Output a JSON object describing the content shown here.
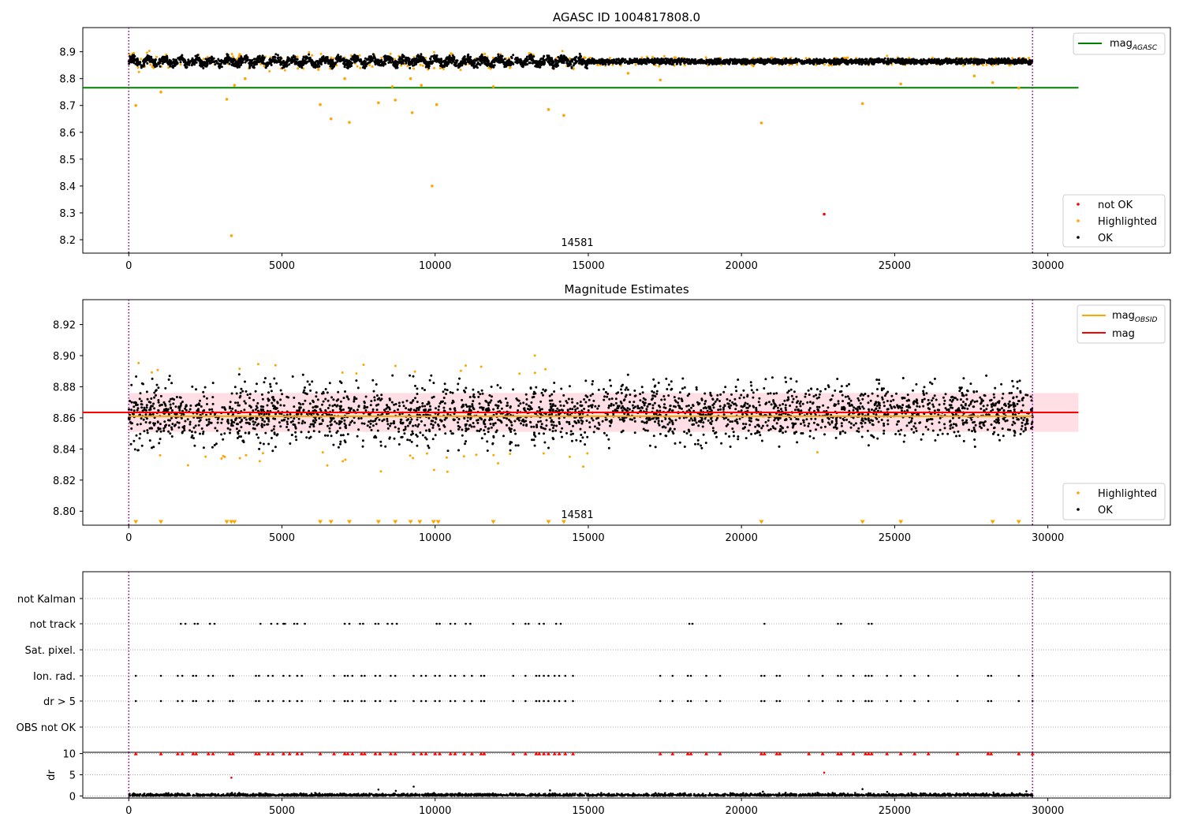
{
  "colors": {
    "ok": "#000000",
    "highlighted": "#ffa500",
    "not_ok": "#ff0000",
    "mag_agasc": "#008000",
    "mag_obsid": "#ffa500",
    "mag": "#ff0000",
    "mag_band": "#ffc0cb",
    "obs_boundary": "#800080",
    "grid": "#b0b0b0"
  },
  "obs_label": "14581",
  "chart_data": [
    {
      "id": "top",
      "type": "scatter",
      "title": "AGASC ID 1004817808.0",
      "xlim": [
        -1500,
        34000
      ],
      "ylim": [
        8.15,
        8.99
      ],
      "xticks": [
        "0",
        "5000",
        "10000",
        "15000",
        "20000",
        "25000",
        "30000"
      ],
      "yticks": [
        "8.2",
        "8.3",
        "8.4",
        "8.5",
        "8.6",
        "8.7",
        "8.8",
        "8.9"
      ],
      "obs_boundaries": [
        0,
        29500
      ],
      "legend_lines": [
        {
          "name_main": "mag",
          "name_sub": "AGASC",
          "color": "#008000",
          "value": 8.766
        }
      ],
      "legend_markers": [
        {
          "name": "not OK",
          "color": "#ff0000"
        },
        {
          "name": "Highlighted",
          "color": "#ffa500"
        },
        {
          "name": "OK",
          "color": "#000000"
        }
      ],
      "band": {
        "x_range": [
          0,
          29500
        ],
        "center": 8.864,
        "spread_early": 0.02,
        "spread_late": 0.012,
        "until_x": 15000
      },
      "outliers": [
        {
          "x": 230,
          "y": 8.7,
          "s": "Highlighted"
        },
        {
          "x": 1050,
          "y": 8.75,
          "s": "Highlighted"
        },
        {
          "x": 3200,
          "y": 8.723,
          "s": "Highlighted"
        },
        {
          "x": 3350,
          "y": 8.215,
          "s": "Highlighted"
        },
        {
          "x": 3450,
          "y": 8.775,
          "s": "Highlighted"
        },
        {
          "x": 3800,
          "y": 8.8,
          "s": "Highlighted"
        },
        {
          "x": 6250,
          "y": 8.703,
          "s": "Highlighted"
        },
        {
          "x": 6600,
          "y": 8.65,
          "s": "Highlighted"
        },
        {
          "x": 7050,
          "y": 8.8,
          "s": "Highlighted"
        },
        {
          "x": 7200,
          "y": 8.637,
          "s": "Highlighted"
        },
        {
          "x": 8150,
          "y": 8.71,
          "s": "Highlighted"
        },
        {
          "x": 8600,
          "y": 8.77,
          "s": "Highlighted"
        },
        {
          "x": 8700,
          "y": 8.72,
          "s": "Highlighted"
        },
        {
          "x": 9200,
          "y": 8.8,
          "s": "Highlighted"
        },
        {
          "x": 9250,
          "y": 8.673,
          "s": "Highlighted"
        },
        {
          "x": 9900,
          "y": 8.4,
          "s": "Highlighted"
        },
        {
          "x": 10050,
          "y": 8.703,
          "s": "Highlighted"
        },
        {
          "x": 9550,
          "y": 8.775,
          "s": "Highlighted"
        },
        {
          "x": 11900,
          "y": 8.77,
          "s": "Highlighted"
        },
        {
          "x": 13700,
          "y": 8.685,
          "s": "Highlighted"
        },
        {
          "x": 14200,
          "y": 8.663,
          "s": "Highlighted"
        },
        {
          "x": 16300,
          "y": 8.82,
          "s": "Highlighted"
        },
        {
          "x": 17350,
          "y": 8.795,
          "s": "Highlighted"
        },
        {
          "x": 20650,
          "y": 8.635,
          "s": "Highlighted"
        },
        {
          "x": 22700,
          "y": 8.295,
          "s": "not OK"
        },
        {
          "x": 23950,
          "y": 8.707,
          "s": "Highlighted"
        },
        {
          "x": 25200,
          "y": 8.78,
          "s": "Highlighted"
        },
        {
          "x": 27600,
          "y": 8.81,
          "s": "Highlighted"
        },
        {
          "x": 28200,
          "y": 8.785,
          "s": "Highlighted"
        },
        {
          "x": 29050,
          "y": 8.765,
          "s": "Highlighted"
        }
      ]
    },
    {
      "id": "middle",
      "type": "scatter",
      "title": "Magnitude Estimates",
      "xlim": [
        -1500,
        34000
      ],
      "ylim": [
        8.791,
        8.936
      ],
      "xticks": [
        "0",
        "5000",
        "10000",
        "15000",
        "20000",
        "25000",
        "30000"
      ],
      "yticks": [
        "8.80",
        "8.82",
        "8.84",
        "8.86",
        "8.88",
        "8.90",
        "8.92"
      ],
      "obs_boundaries": [
        0,
        29500
      ],
      "mag": 8.8635,
      "mag_band": [
        8.851,
        8.876
      ],
      "mag_line_xrange": [
        -1500,
        31000
      ],
      "mag_obsid": 8.861,
      "legend_lines": [
        {
          "name_main": "mag",
          "name_sub": "OBSID",
          "color": "#ffa500"
        },
        {
          "name_main": "mag",
          "name_sub": "",
          "color": "#ff0000"
        }
      ],
      "legend_markers": [
        {
          "name": "Highlighted",
          "color": "#ffa500"
        },
        {
          "name": "OK",
          "color": "#000000"
        }
      ],
      "low_markers_x": [
        230,
        1050,
        3200,
        3350,
        3450,
        6250,
        6600,
        7200,
        8150,
        8700,
        9200,
        9500,
        9950,
        10100,
        11900,
        13700,
        14200,
        20650,
        23950,
        25200,
        28200,
        29050
      ]
    },
    {
      "id": "flags",
      "type": "scatter",
      "categories": [
        "not Kalman",
        "not track",
        "Sat. pixel.",
        "Ion. rad.",
        "dr > 5",
        "OBS not OK"
      ],
      "xlim": [
        -1500,
        34000
      ],
      "obs_boundaries": [
        0,
        29500
      ],
      "not_track_x": [
        1700,
        1850,
        2150,
        2250,
        2650,
        2800,
        4300,
        4650,
        4850,
        5050,
        5100,
        5400,
        5500,
        5750,
        7050,
        7200,
        7550,
        7650,
        8050,
        8150,
        8450,
        8600,
        8750,
        10050,
        10150,
        10500,
        10650,
        11000,
        11150,
        12550,
        12950,
        13050,
        13400,
        13550,
        13950,
        14100,
        18300,
        18400,
        20750,
        23150,
        23250,
        24150,
        24250
      ],
      "ion_x": [
        230,
        1050,
        1600,
        1750,
        2100,
        2200,
        2600,
        2750,
        3300,
        3400,
        4150,
        4250,
        4550,
        4700,
        5050,
        5250,
        5500,
        5650,
        6250,
        6700,
        7050,
        7150,
        7300,
        7600,
        7700,
        8050,
        8200,
        8550,
        8700,
        9300,
        9550,
        9700,
        10000,
        10150,
        10500,
        10650,
        10950,
        11200,
        11500,
        11600,
        12550,
        12950,
        13300,
        13400,
        13550,
        13700,
        13900,
        14050,
        14250,
        14500,
        17350,
        17750,
        18250,
        18350,
        18850,
        19300,
        20650,
        20750,
        21150,
        21250,
        22200,
        22650,
        23150,
        23250,
        23650,
        24050,
        24150,
        24250,
        24750,
        25200,
        25650,
        26100,
        27050,
        28050,
        28150,
        29050,
        29500
      ]
    },
    {
      "id": "dr",
      "type": "scatter",
      "ylabel": "dr",
      "xlim": [
        -1500,
        34000
      ],
      "ylim": [
        -0.5,
        10.3
      ],
      "xticks": [
        "0",
        "5000",
        "10000",
        "15000",
        "20000",
        "25000",
        "30000"
      ],
      "yticks": [
        "0",
        "5",
        "10"
      ],
      "obs_boundaries": [
        0,
        29500
      ],
      "outliers": [
        {
          "x": 3350,
          "y": 4.3
        },
        {
          "x": 22700,
          "y": 5.5
        },
        {
          "x": 9300,
          "y": 2.2
        },
        {
          "x": 23950,
          "y": 1.6
        },
        {
          "x": 8150,
          "y": 1.5
        },
        {
          "x": 13750,
          "y": 1.3
        },
        {
          "x": 29300,
          "y": 1.1
        },
        {
          "x": 20700,
          "y": 1.0
        }
      ]
    }
  ]
}
